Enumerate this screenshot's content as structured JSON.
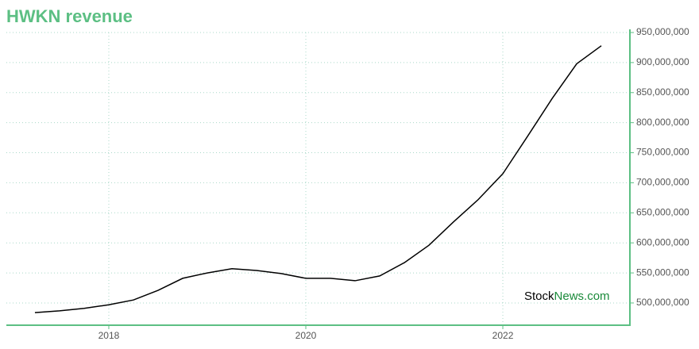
{
  "chart_data": {
    "type": "line",
    "title": "HWKN revenue",
    "watermark": [
      "Stock",
      "News.com"
    ],
    "x": [
      2017.25,
      2017.5,
      2017.75,
      2018.0,
      2018.25,
      2018.5,
      2018.75,
      2019.0,
      2019.25,
      2019.5,
      2019.75,
      2020.0,
      2020.25,
      2020.5,
      2020.75,
      2021.0,
      2021.25,
      2021.5,
      2021.75,
      2022.0,
      2022.25,
      2022.5,
      2022.75,
      2023.0
    ],
    "series": [
      {
        "name": "revenue",
        "color": "#000000",
        "values": [
          484000000,
          487000000,
          491000000,
          497000000,
          505000000,
          521000000,
          541000000,
          550000000,
          557000000,
          554000000,
          549000000,
          541000000,
          541000000,
          537000000,
          545000000,
          567000000,
          596000000,
          635000000,
          672000000,
          715000000,
          777000000,
          840000000,
          898000000,
          928000000
        ]
      }
    ],
    "xlim": [
      2016.96,
      2023.29
    ],
    "xticks": [
      2018,
      2020,
      2022
    ],
    "ylim": [
      463000000,
      950000000
    ],
    "yticks": [
      {
        "value": 500000000,
        "label": "500,000,000"
      },
      {
        "value": 550000000,
        "label": "550,000,000"
      },
      {
        "value": 600000000,
        "label": "600,000,000"
      },
      {
        "value": 650000000,
        "label": "650,000,000"
      },
      {
        "value": 700000000,
        "label": "700,000,000"
      },
      {
        "value": 750000000,
        "label": "750,000,000"
      },
      {
        "value": 800000000,
        "label": "800,000,000"
      },
      {
        "value": 850000000,
        "label": "850,000,000"
      },
      {
        "value": 900000000,
        "label": "900,000,000"
      },
      {
        "value": 950000000,
        "label": "950,000,000"
      }
    ],
    "grid": true,
    "axis_color": "#5cbf83",
    "title_color": "#5cbf83"
  }
}
